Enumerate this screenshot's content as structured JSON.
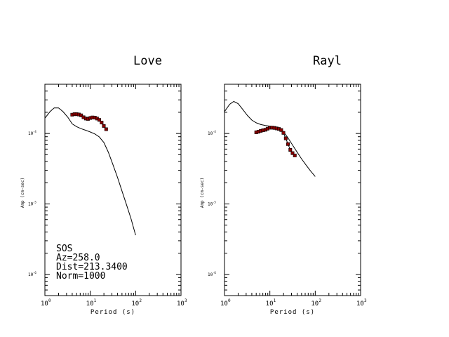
{
  "info": {
    "station": "SOS",
    "azimuth": "Az=258.0",
    "distance": "Dist=213.3400",
    "norm": "Norm=1000"
  },
  "chart_data": [
    {
      "type": "line",
      "title": "Love",
      "xlabel": "Period (s)",
      "ylabel": "Amp (cm-sec)",
      "xscale": "log",
      "yscale": "log",
      "xlim": [
        1,
        1000
      ],
      "ylim": [
        5e-07,
        0.0005
      ],
      "x_ticks": [
        {
          "base": "10",
          "exp": "0"
        },
        {
          "base": "10",
          "exp": "1"
        },
        {
          "base": "10",
          "exp": "2"
        },
        {
          "base": "10",
          "exp": "3"
        }
      ],
      "y_ticks": [
        {
          "base": "10",
          "exp": "-4",
          "value": 0.0001
        },
        {
          "base": "10",
          "exp": "-5",
          "value": 1e-05
        },
        {
          "base": "10",
          "exp": "-6",
          "value": 1e-06
        }
      ],
      "series": [
        {
          "kind": "model-line",
          "color": "#000000",
          "points": [
            [
              1.0,
              0.000165
            ],
            [
              1.3,
              0.000205
            ],
            [
              1.6,
              0.00023
            ],
            [
              2.0,
              0.00023
            ],
            [
              2.5,
              0.000205
            ],
            [
              3.2,
              0.00017
            ],
            [
              4.0,
              0.000137
            ],
            [
              5.0,
              0.000125
            ],
            [
              6.3,
              0.000117
            ],
            [
              8.0,
              0.000111
            ],
            [
              10.0,
              0.000105
            ],
            [
              12.6,
              9.85e-05
            ],
            [
              15.8,
              8.95e-05
            ],
            [
              20.0,
              7.45e-05
            ],
            [
              25.1,
              5.4e-05
            ],
            [
              31.6,
              3.6e-05
            ],
            [
              39.8,
              2.38e-05
            ],
            [
              50.1,
              1.52e-05
            ],
            [
              63.1,
              9.7e-06
            ],
            [
              79.4,
              6.1e-06
            ],
            [
              100.0,
              3.6e-06
            ]
          ]
        },
        {
          "kind": "observed",
          "color": "#8b0000",
          "points": [
            [
              4.0,
              0.000185
            ],
            [
              4.5,
              0.000188
            ],
            [
              5.0,
              0.000188
            ],
            [
              5.6,
              0.000186
            ],
            [
              6.3,
              0.000181
            ],
            [
              7.1,
              0.00017
            ],
            [
              8.0,
              0.000163
            ],
            [
              8.9,
              0.000161
            ],
            [
              10.0,
              0.000166
            ],
            [
              11.2,
              0.000169
            ],
            [
              12.6,
              0.000168
            ],
            [
              14.1,
              0.000163
            ],
            [
              15.8,
              0.000156
            ],
            [
              17.8,
              0.000143
            ],
            [
              19.9,
              0.000128
            ],
            [
              22.4,
              0.000115
            ]
          ]
        }
      ]
    },
    {
      "type": "line",
      "title": "Rayl",
      "xlabel": "Period (s)",
      "ylabel": "Amp (cm-sec)",
      "xscale": "log",
      "yscale": "log",
      "xlim": [
        1,
        1000
      ],
      "ylim": [
        5e-07,
        0.0005
      ],
      "x_ticks": [
        {
          "base": "10",
          "exp": "0"
        },
        {
          "base": "10",
          "exp": "1"
        },
        {
          "base": "10",
          "exp": "2"
        },
        {
          "base": "10",
          "exp": "3"
        }
      ],
      "y_ticks": [
        {
          "base": "10",
          "exp": "-4",
          "value": 0.0001
        },
        {
          "base": "10",
          "exp": "-5",
          "value": 1e-05
        },
        {
          "base": "10",
          "exp": "-6",
          "value": 1e-06
        }
      ],
      "series": [
        {
          "kind": "model-line",
          "color": "#000000",
          "points": [
            [
              1.0,
              0.000205
            ],
            [
              1.3,
              0.00026
            ],
            [
              1.6,
              0.000285
            ],
            [
              2.0,
              0.000265
            ],
            [
              2.5,
              0.000222
            ],
            [
              3.2,
              0.00018
            ],
            [
              4.0,
              0.000155
            ],
            [
              5.0,
              0.000142
            ],
            [
              6.3,
              0.000134
            ],
            [
              8.0,
              0.00013
            ],
            [
              10.0,
              0.000127
            ],
            [
              12.6,
              0.000125
            ],
            [
              15.8,
              0.00012
            ],
            [
              20.0,
              0.000106
            ],
            [
              25.1,
              8.65e-05
            ],
            [
              31.6,
              6.85e-05
            ],
            [
              39.8,
              5.43e-05
            ],
            [
              50.1,
              4.35e-05
            ],
            [
              63.1,
              3.55e-05
            ],
            [
              79.4,
              2.92e-05
            ],
            [
              100.0,
              2.45e-05
            ]
          ]
        },
        {
          "kind": "observed",
          "color": "#8b0000",
          "points": [
            [
              5.0,
              0.000104
            ],
            [
              5.6,
              0.000106
            ],
            [
              6.3,
              0.000109
            ],
            [
              7.1,
              0.000111
            ],
            [
              8.0,
              0.000113
            ],
            [
              8.9,
              0.000117
            ],
            [
              10.0,
              0.000121
            ],
            [
              11.2,
              0.000121
            ],
            [
              12.6,
              0.00012
            ],
            [
              14.1,
              0.000118
            ],
            [
              15.8,
              0.000116
            ],
            [
              17.8,
              0.000112
            ],
            [
              19.9,
              0.000102
            ],
            [
              22.4,
              8.53e-05
            ],
            [
              25.1,
              7.07e-05
            ],
            [
              28.2,
              5.85e-05
            ],
            [
              31.6,
              5.26e-05
            ],
            [
              35.5,
              4.88e-05
            ]
          ]
        }
      ]
    }
  ]
}
